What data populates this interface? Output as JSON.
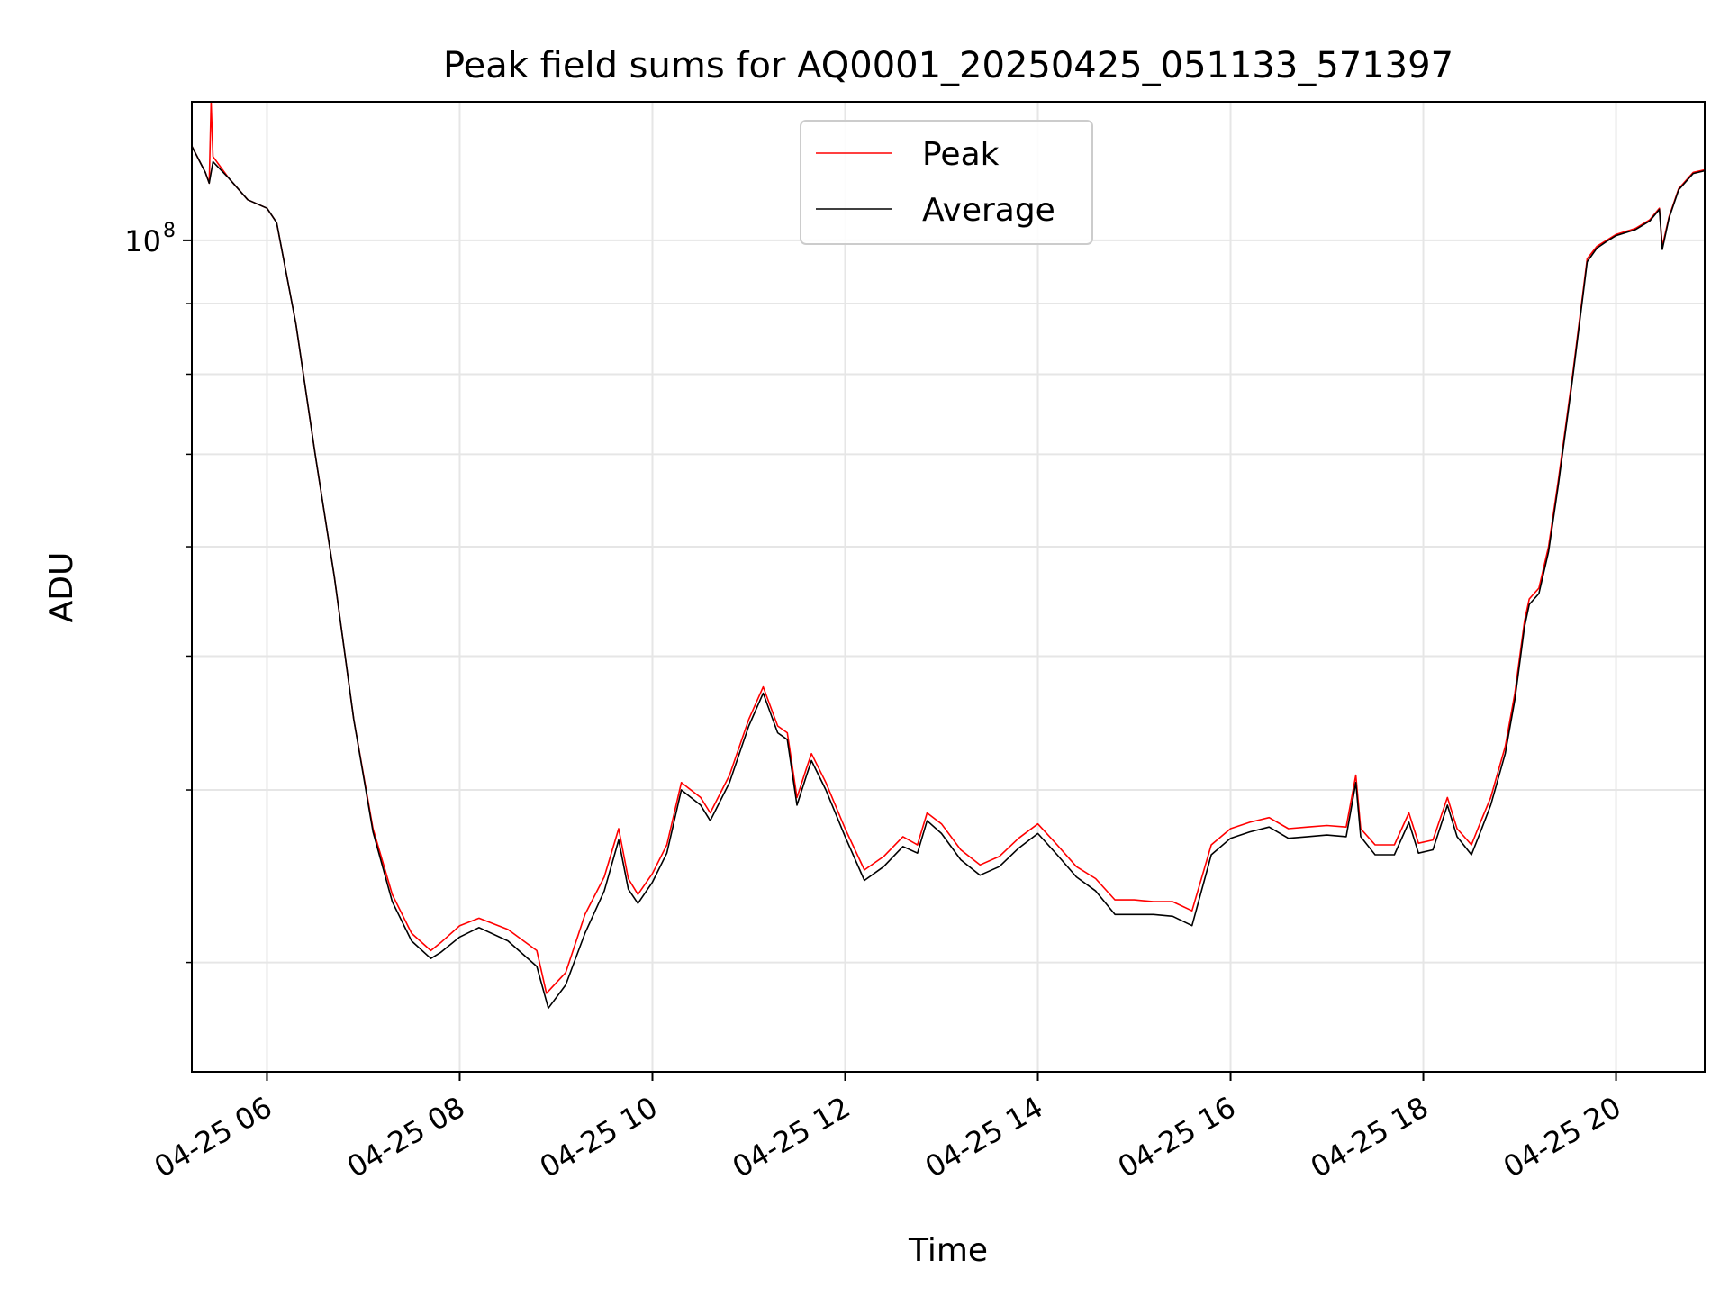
{
  "chart_data": {
    "type": "line",
    "title": "Peak field sums for AQ0001_20250425_051133_571397",
    "xlabel": "Time",
    "ylabel": "ADU",
    "yscale": "log",
    "grid": true,
    "legend_position": "top-center",
    "x_range_hours": [
      5.22,
      20.92
    ],
    "y_range": [
      25000000,
      126000000
    ],
    "x_ticks": [
      {
        "hour": 6,
        "label": "04-25 06"
      },
      {
        "hour": 8,
        "label": "04-25 08"
      },
      {
        "hour": 10,
        "label": "04-25 10"
      },
      {
        "hour": 12,
        "label": "04-25 12"
      },
      {
        "hour": 14,
        "label": "04-25 14"
      },
      {
        "hour": 16,
        "label": "04-25 16"
      },
      {
        "hour": 18,
        "label": "04-25 18"
      },
      {
        "hour": 20,
        "label": "04-25 20"
      }
    ],
    "y_major_ticks": [
      {
        "value": 100000000,
        "base": "10",
        "exp": "8"
      }
    ],
    "y_minor_ticks": [
      30000000,
      40000000,
      50000000,
      60000000,
      70000000,
      80000000,
      90000000
    ],
    "series": [
      {
        "name": "Peak",
        "color": "#ff0000",
        "points": [
          [
            5.22,
            117
          ],
          [
            5.36,
            112
          ],
          [
            5.4,
            110
          ],
          [
            5.42,
            128
          ],
          [
            5.44,
            115
          ],
          [
            5.6,
            111
          ],
          [
            5.8,
            107
          ],
          [
            6.0,
            105.5
          ],
          [
            6.1,
            103
          ],
          [
            6.3,
            87
          ],
          [
            6.5,
            70
          ],
          [
            6.7,
            57
          ],
          [
            6.9,
            45
          ],
          [
            7.1,
            37.5
          ],
          [
            7.3,
            33.6
          ],
          [
            7.5,
            31.5
          ],
          [
            7.7,
            30.6
          ],
          [
            7.8,
            31
          ],
          [
            8.0,
            31.9
          ],
          [
            8.2,
            32.3
          ],
          [
            8.5,
            31.7
          ],
          [
            8.8,
            30.6
          ],
          [
            8.9,
            28.5
          ],
          [
            9.1,
            29.5
          ],
          [
            9.3,
            32.5
          ],
          [
            9.5,
            34.6
          ],
          [
            9.65,
            37.5
          ],
          [
            9.75,
            34.5
          ],
          [
            9.85,
            33.6
          ],
          [
            10.0,
            34.8
          ],
          [
            10.15,
            36.5
          ],
          [
            10.3,
            40.5
          ],
          [
            10.5,
            39.5
          ],
          [
            10.6,
            38.5
          ],
          [
            10.8,
            41
          ],
          [
            11.0,
            45
          ],
          [
            11.15,
            47.5
          ],
          [
            11.3,
            44.5
          ],
          [
            11.4,
            44
          ],
          [
            11.5,
            39.5
          ],
          [
            11.6,
            41.5
          ],
          [
            11.65,
            42.5
          ],
          [
            11.8,
            40.5
          ],
          [
            12.0,
            37.5
          ],
          [
            12.2,
            35
          ],
          [
            12.4,
            35.8
          ],
          [
            12.6,
            37
          ],
          [
            12.75,
            36.5
          ],
          [
            12.85,
            38.5
          ],
          [
            13.0,
            37.8
          ],
          [
            13.2,
            36.2
          ],
          [
            13.4,
            35.3
          ],
          [
            13.6,
            35.8
          ],
          [
            13.8,
            36.9
          ],
          [
            14.0,
            37.8
          ],
          [
            14.2,
            36.5
          ],
          [
            14.4,
            35.2
          ],
          [
            14.6,
            34.5
          ],
          [
            14.8,
            33.3
          ],
          [
            15.0,
            33.3
          ],
          [
            15.2,
            33.2
          ],
          [
            15.4,
            33.2
          ],
          [
            15.6,
            32.7
          ],
          [
            15.8,
            36.5
          ],
          [
            16.0,
            37.5
          ],
          [
            16.2,
            37.9
          ],
          [
            16.4,
            38.2
          ],
          [
            16.6,
            37.5
          ],
          [
            16.8,
            37.6
          ],
          [
            17.0,
            37.7
          ],
          [
            17.2,
            37.6
          ],
          [
            17.3,
            41
          ],
          [
            17.35,
            37.5
          ],
          [
            17.5,
            36.5
          ],
          [
            17.7,
            36.5
          ],
          [
            17.85,
            38.5
          ],
          [
            17.95,
            36.6
          ],
          [
            18.1,
            36.8
          ],
          [
            18.25,
            39.5
          ],
          [
            18.35,
            37.5
          ],
          [
            18.5,
            36.5
          ],
          [
            18.6,
            38
          ],
          [
            18.7,
            39.5
          ],
          [
            18.85,
            43
          ],
          [
            18.95,
            47
          ],
          [
            19.05,
            53
          ],
          [
            19.1,
            55
          ],
          [
            19.2,
            56
          ],
          [
            19.3,
            60
          ],
          [
            19.4,
            67
          ],
          [
            19.55,
            80
          ],
          [
            19.7,
            97
          ],
          [
            19.8,
            99
          ],
          [
            19.9,
            100
          ],
          [
            20.0,
            101
          ],
          [
            20.2,
            102
          ],
          [
            20.35,
            103.5
          ],
          [
            20.45,
            105.5
          ],
          [
            20.48,
            99
          ],
          [
            20.55,
            104
          ],
          [
            20.65,
            109
          ],
          [
            20.8,
            112
          ],
          [
            20.92,
            112.5
          ]
        ]
      },
      {
        "name": "Average",
        "color": "#000000",
        "points": [
          [
            5.22,
            117
          ],
          [
            5.36,
            112
          ],
          [
            5.4,
            110
          ],
          [
            5.44,
            114
          ],
          [
            5.6,
            111
          ],
          [
            5.8,
            107
          ],
          [
            6.0,
            105.5
          ],
          [
            6.1,
            103
          ],
          [
            6.3,
            87
          ],
          [
            6.5,
            70
          ],
          [
            6.7,
            57
          ],
          [
            6.9,
            45
          ],
          [
            7.1,
            37.3
          ],
          [
            7.3,
            33.2
          ],
          [
            7.5,
            31.1
          ],
          [
            7.7,
            30.2
          ],
          [
            7.8,
            30.5
          ],
          [
            8.0,
            31.3
          ],
          [
            8.2,
            31.8
          ],
          [
            8.5,
            31.1
          ],
          [
            8.8,
            29.8
          ],
          [
            8.92,
            27.8
          ],
          [
            9.1,
            28.9
          ],
          [
            9.3,
            31.5
          ],
          [
            9.5,
            33.8
          ],
          [
            9.65,
            36.8
          ],
          [
            9.75,
            33.9
          ],
          [
            9.85,
            33.1
          ],
          [
            10.0,
            34.3
          ],
          [
            10.15,
            36
          ],
          [
            10.3,
            40
          ],
          [
            10.5,
            39
          ],
          [
            10.6,
            38
          ],
          [
            10.8,
            40.5
          ],
          [
            11.0,
            44.5
          ],
          [
            11.15,
            47
          ],
          [
            11.3,
            44
          ],
          [
            11.4,
            43.5
          ],
          [
            11.5,
            39
          ],
          [
            11.6,
            41
          ],
          [
            11.65,
            42
          ],
          [
            11.8,
            40
          ],
          [
            12.0,
            37
          ],
          [
            12.2,
            34.4
          ],
          [
            12.4,
            35.2
          ],
          [
            12.6,
            36.4
          ],
          [
            12.75,
            36
          ],
          [
            12.85,
            38
          ],
          [
            13.0,
            37.2
          ],
          [
            13.2,
            35.6
          ],
          [
            13.4,
            34.7
          ],
          [
            13.6,
            35.2
          ],
          [
            13.8,
            36.3
          ],
          [
            14.0,
            37.2
          ],
          [
            14.2,
            35.9
          ],
          [
            14.4,
            34.6
          ],
          [
            14.6,
            33.8
          ],
          [
            14.8,
            32.5
          ],
          [
            15.0,
            32.5
          ],
          [
            15.2,
            32.5
          ],
          [
            15.4,
            32.4
          ],
          [
            15.6,
            31.9
          ],
          [
            15.8,
            35.9
          ],
          [
            16.0,
            36.9
          ],
          [
            16.2,
            37.3
          ],
          [
            16.4,
            37.6
          ],
          [
            16.6,
            36.9
          ],
          [
            16.8,
            37
          ],
          [
            17.0,
            37.1
          ],
          [
            17.2,
            37
          ],
          [
            17.3,
            40.5
          ],
          [
            17.35,
            37
          ],
          [
            17.5,
            35.9
          ],
          [
            17.7,
            35.9
          ],
          [
            17.85,
            37.9
          ],
          [
            17.95,
            36
          ],
          [
            18.1,
            36.2
          ],
          [
            18.25,
            39
          ],
          [
            18.35,
            37
          ],
          [
            18.5,
            35.9
          ],
          [
            18.6,
            37.4
          ],
          [
            18.7,
            39
          ],
          [
            18.85,
            42.5
          ],
          [
            18.95,
            46.5
          ],
          [
            19.05,
            52.5
          ],
          [
            19.1,
            54.5
          ],
          [
            19.2,
            55.5
          ],
          [
            19.3,
            59.5
          ],
          [
            19.4,
            66.5
          ],
          [
            19.55,
            79.5
          ],
          [
            19.7,
            96.5
          ],
          [
            19.8,
            98.7
          ],
          [
            19.9,
            99.8
          ],
          [
            20.0,
            100.8
          ],
          [
            20.2,
            101.8
          ],
          [
            20.35,
            103.3
          ],
          [
            20.45,
            105.3
          ],
          [
            20.48,
            98.5
          ],
          [
            20.55,
            103.8
          ],
          [
            20.65,
            108.8
          ],
          [
            20.8,
            111.8
          ],
          [
            20.92,
            112.3
          ]
        ]
      }
    ]
  }
}
